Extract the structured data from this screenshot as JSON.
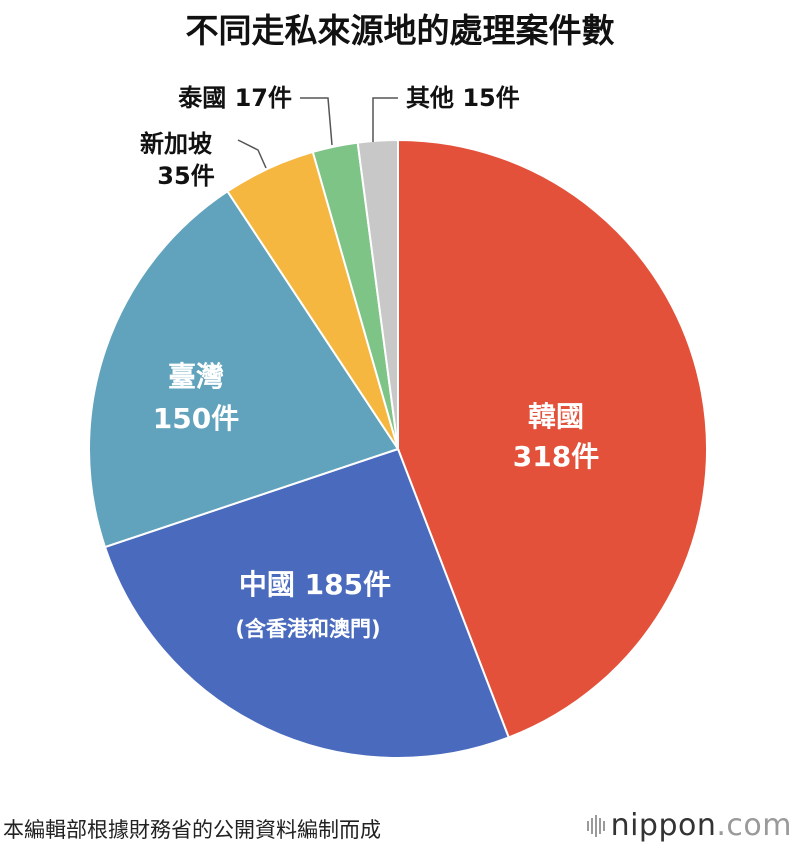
{
  "chart_data": {
    "type": "pie",
    "title": "不同走私來源地的處理案件數",
    "unit": "件",
    "slices": [
      {
        "name": "韓國",
        "value": 318,
        "color": "#e4513b"
      },
      {
        "name": "中國",
        "value": 185,
        "note": "(含香港和澳門)",
        "color": "#4a6abe"
      },
      {
        "name": "臺灣",
        "value": 150,
        "color": "#61a3bc"
      },
      {
        "name": "新加坡",
        "value": 35,
        "color": "#f5b73f"
      },
      {
        "name": "泰國",
        "value": 17,
        "color": "#7ec486"
      },
      {
        "name": "其他",
        "value": 15,
        "color": "#c8c8c8"
      }
    ],
    "labels": {
      "korea_name": "韓國",
      "korea_value": "318件",
      "china_name_value": "中國 185件",
      "china_note": "(含香港和澳門)",
      "taiwan_name": "臺灣",
      "taiwan_value": "150件",
      "singapore_name": "新加坡",
      "singapore_value": "35件",
      "thailand": "泰國 17件",
      "other": "其他 15件"
    }
  },
  "footnote": "本編輯部根據財務省的公開資料編制而成",
  "brand": {
    "main": "nippon",
    "suffix": ".com"
  }
}
